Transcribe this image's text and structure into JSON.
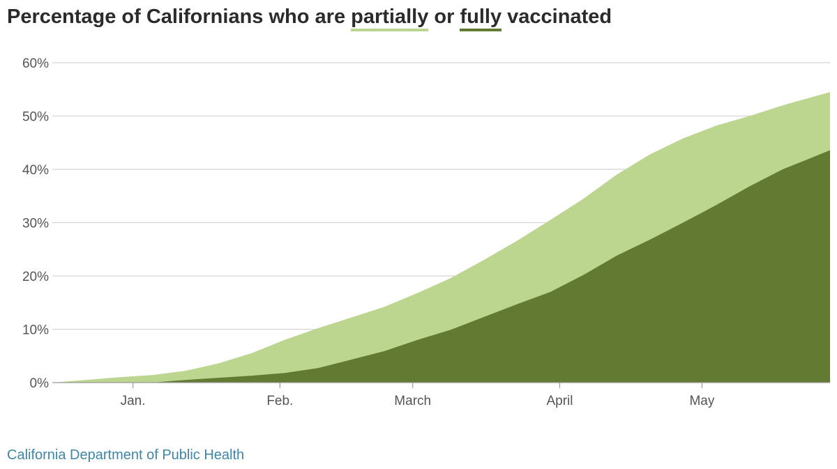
{
  "title": {
    "prefix": "Percentage of Californians who are ",
    "partial_word": "partially",
    "middle": " or ",
    "full_word": "fully",
    "suffix": " vaccinated"
  },
  "source": "California Department of Public Health",
  "colors": {
    "partial": "#bcd690",
    "full": "#627a32",
    "grid": "#d4d4d4",
    "source": "#3f86a6"
  },
  "chart_data": {
    "type": "area",
    "x_axis": {
      "range": [
        "2020-12-15",
        "2021-05-28"
      ],
      "ticks": [
        {
          "label": "Jan.",
          "date": "2021-01-01"
        },
        {
          "label": "Feb.",
          "date": "2021-02-01"
        },
        {
          "label": "March",
          "date": "2021-03-01"
        },
        {
          "label": "April",
          "date": "2021-04-01"
        },
        {
          "label": "May",
          "date": "2021-05-01"
        }
      ]
    },
    "y_axis": {
      "range": [
        0,
        60
      ],
      "ticks": [
        0,
        10,
        20,
        30,
        40,
        50,
        60
      ],
      "tick_suffix": "%"
    },
    "grid": true,
    "series": [
      {
        "key": "partial",
        "points": [
          [
            "2020-12-15",
            0
          ],
          [
            "2020-12-22",
            0.5
          ],
          [
            "2020-12-29",
            1.0
          ],
          [
            "2021-01-05",
            1.4
          ],
          [
            "2021-01-12",
            2.2
          ],
          [
            "2021-01-19",
            3.6
          ],
          [
            "2021-01-26",
            5.5
          ],
          [
            "2021-02-02",
            8.0
          ],
          [
            "2021-02-09",
            10.2
          ],
          [
            "2021-02-16",
            12.2
          ],
          [
            "2021-02-23",
            14.2
          ],
          [
            "2021-03-02",
            16.8
          ],
          [
            "2021-03-09",
            19.6
          ],
          [
            "2021-03-16",
            23.0
          ],
          [
            "2021-03-23",
            26.6
          ],
          [
            "2021-03-30",
            30.5
          ],
          [
            "2021-04-06",
            34.5
          ],
          [
            "2021-04-13",
            39.0
          ],
          [
            "2021-04-20",
            42.8
          ],
          [
            "2021-04-27",
            45.8
          ],
          [
            "2021-05-04",
            48.2
          ],
          [
            "2021-05-11",
            50.0
          ],
          [
            "2021-05-18",
            52.0
          ],
          [
            "2021-05-28",
            54.5
          ]
        ]
      },
      {
        "key": "full",
        "points": [
          [
            "2020-12-15",
            0
          ],
          [
            "2021-01-05",
            0
          ],
          [
            "2021-01-12",
            0.5
          ],
          [
            "2021-01-19",
            0.9
          ],
          [
            "2021-01-26",
            1.3
          ],
          [
            "2021-02-02",
            1.8
          ],
          [
            "2021-02-09",
            2.7
          ],
          [
            "2021-02-16",
            4.3
          ],
          [
            "2021-02-23",
            5.9
          ],
          [
            "2021-03-02",
            8.0
          ],
          [
            "2021-03-09",
            9.9
          ],
          [
            "2021-03-16",
            12.3
          ],
          [
            "2021-03-23",
            14.7
          ],
          [
            "2021-03-30",
            17.0
          ],
          [
            "2021-04-06",
            20.2
          ],
          [
            "2021-04-13",
            23.8
          ],
          [
            "2021-04-20",
            26.8
          ],
          [
            "2021-04-27",
            30.0
          ],
          [
            "2021-05-04",
            33.3
          ],
          [
            "2021-05-11",
            36.8
          ],
          [
            "2021-05-18",
            40.0
          ],
          [
            "2021-05-25",
            42.5
          ],
          [
            "2021-05-28",
            43.6
          ]
        ]
      }
    ]
  }
}
